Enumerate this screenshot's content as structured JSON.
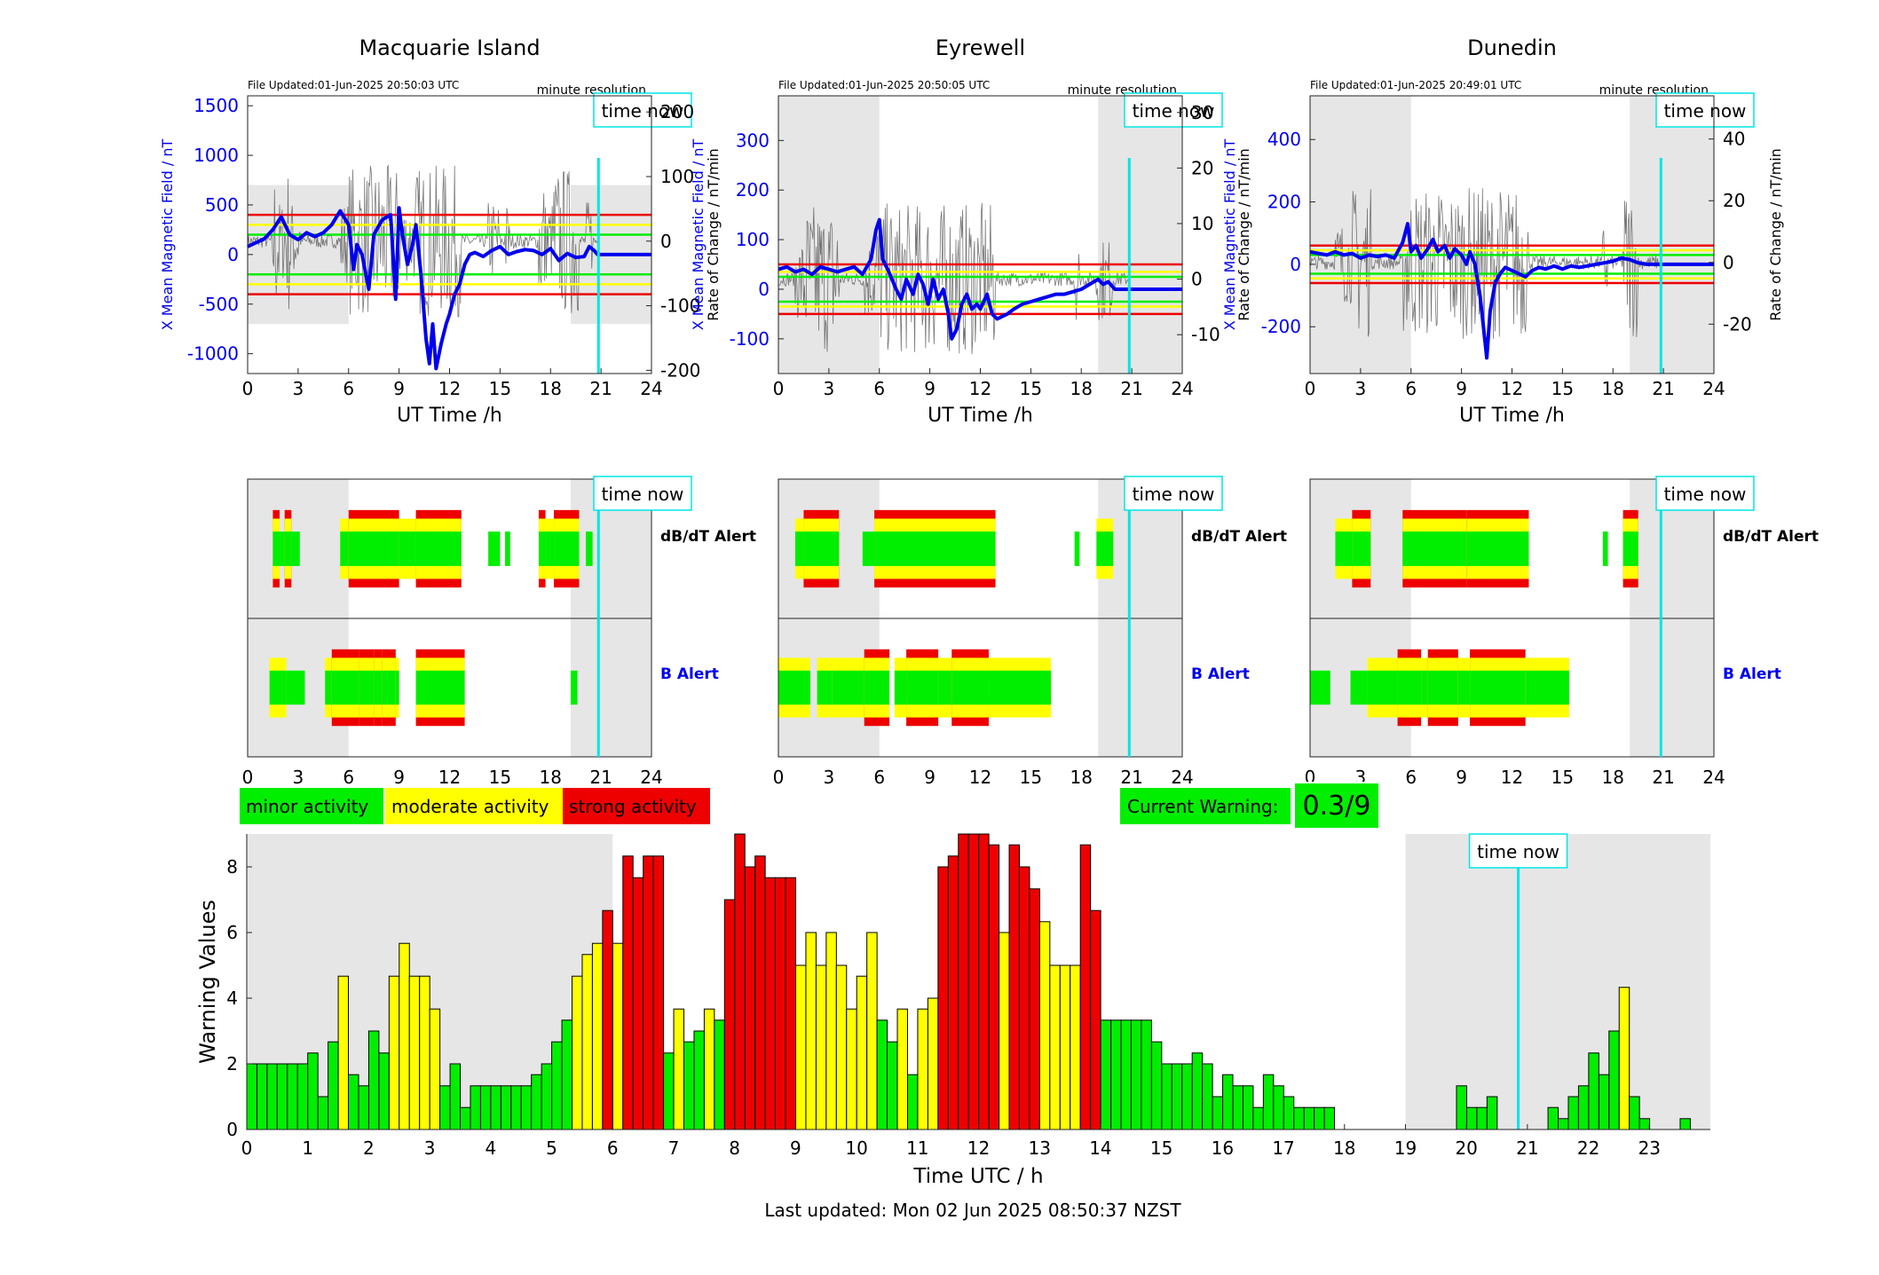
{
  "footer": "Last updated: Mon 02 Jun 2025 08:50:37 NZST",
  "time_now_label": "time now",
  "minute_resolution_label": "minute resolution",
  "ut_time_xlabel": "UT Time /h",
  "ylabel_left": "X Mean Magnetic Field / nT",
  "ylabel_right": "Rate of Change / nT/min",
  "dbdt_alert_label": "dB/dT Alert",
  "b_alert_label": "B Alert",
  "legend": {
    "minor": "minor activity",
    "moderate": "moderate activity",
    "strong": "strong activity"
  },
  "current_warning": {
    "label": "Current Warning:",
    "value": "0.3/9"
  },
  "colors": {
    "minor": "#00ee00",
    "moderate": "#ffff00",
    "strong": "#ee0000",
    "mean_line": "#0000ee",
    "time_now_line": "#00e5e5",
    "night_shading": "#e6e6e6"
  },
  "time_now_hour": 20.85,
  "stations": [
    {
      "name": "Macquarie Island",
      "file_updated": "File Updated:01-Jun-2025 20:50:03 UTC",
      "ylim": [
        -1200,
        1600
      ],
      "yticks": [
        -1000,
        -500,
        0,
        500,
        1000,
        1500
      ],
      "rlim": [
        -205,
        225
      ],
      "rticks": [
        -200,
        -100,
        0,
        100,
        200
      ],
      "thresholds": {
        "green": 200,
        "yellow": 300,
        "red": 400
      },
      "night_hours": [
        [
          0,
          6
        ],
        [
          19.2,
          24
        ]
      ],
      "night_band_y": [
        -700,
        700
      ],
      "mean_field": [
        [
          0,
          80
        ],
        [
          0.5,
          120
        ],
        [
          1,
          160
        ],
        [
          1.5,
          250
        ],
        [
          2,
          380
        ],
        [
          2.5,
          200
        ],
        [
          3,
          150
        ],
        [
          3.5,
          220
        ],
        [
          4,
          180
        ],
        [
          4.5,
          220
        ],
        [
          5,
          300
        ],
        [
          5.5,
          440
        ],
        [
          6,
          300
        ],
        [
          6.3,
          -150
        ],
        [
          6.5,
          100
        ],
        [
          6.8,
          0
        ],
        [
          7.2,
          -350
        ],
        [
          7.5,
          200
        ],
        [
          8,
          350
        ],
        [
          8.5,
          400
        ],
        [
          8.8,
          -450
        ],
        [
          9,
          470
        ],
        [
          9.2,
          200
        ],
        [
          9.5,
          -100
        ],
        [
          9.8,
          100
        ],
        [
          10,
          300
        ],
        [
          10.3,
          -200
        ],
        [
          10.6,
          -850
        ],
        [
          10.8,
          -1100
        ],
        [
          11,
          -700
        ],
        [
          11.2,
          -1150
        ],
        [
          11.5,
          -900
        ],
        [
          11.8,
          -700
        ],
        [
          12,
          -600
        ],
        [
          12.3,
          -400
        ],
        [
          12.6,
          -300
        ],
        [
          12.9,
          -100
        ],
        [
          13.2,
          0
        ],
        [
          13.5,
          20
        ],
        [
          14,
          -20
        ],
        [
          14.5,
          40
        ],
        [
          15,
          80
        ],
        [
          15.5,
          0
        ],
        [
          16,
          30
        ],
        [
          16.5,
          50
        ],
        [
          17,
          40
        ],
        [
          17.5,
          0
        ],
        [
          18,
          60
        ],
        [
          18.5,
          -60
        ],
        [
          19,
          10
        ],
        [
          19.5,
          -30
        ],
        [
          20,
          -20
        ],
        [
          20.3,
          80
        ],
        [
          20.6,
          40
        ],
        [
          20.8,
          0
        ],
        [
          24,
          0
        ]
      ],
      "activity_columns": [
        {
          "c": [
            1.5,
            1.9
          ],
          "k": "lvl3"
        },
        {
          "c": [
            1.9,
            2.2
          ],
          "k": "lvl1"
        },
        {
          "c": [
            2.2,
            2.6
          ],
          "k": "lvl3"
        },
        {
          "c": [
            2.6,
            3.1
          ],
          "k": "lvl1"
        },
        {
          "c": [
            5.5,
            6.0
          ],
          "k": "lvl2"
        },
        {
          "c": [
            6.0,
            9.0
          ],
          "k": "lvl3"
        },
        {
          "c": [
            9.0,
            10.0
          ],
          "k": "lvl2"
        },
        {
          "c": [
            10.0,
            12.7
          ],
          "k": "lvl3"
        },
        {
          "c": [
            14.3,
            15.0
          ],
          "k": "lvl1"
        },
        {
          "c": [
            15.3,
            15.6
          ],
          "k": "lvl1"
        },
        {
          "c": [
            17.3,
            17.7
          ],
          "k": "lvl3"
        },
        {
          "c": [
            17.7,
            18.2
          ],
          "k": "lvl2"
        },
        {
          "c": [
            18.2,
            19.7
          ],
          "k": "lvl3"
        },
        {
          "c": [
            20.1,
            20.5
          ],
          "k": "lvl1"
        }
      ],
      "b_columns": [
        {
          "c": [
            1.3,
            2.3
          ],
          "k": "lvl2"
        },
        {
          "c": [
            2.3,
            3.4
          ],
          "k": "lvl1"
        },
        {
          "c": [
            4.6,
            5.0
          ],
          "k": "lvl2"
        },
        {
          "c": [
            5.0,
            6.6
          ],
          "k": "lvl3"
        },
        {
          "c": [
            6.6,
            7.5
          ],
          "k": "lvl3"
        },
        {
          "c": [
            7.5,
            8.0
          ],
          "k": "lvl3"
        },
        {
          "c": [
            8.0,
            8.8
          ],
          "k": "lvl3"
        },
        {
          "c": [
            8.8,
            9.0
          ],
          "k": "lvl2"
        },
        {
          "c": [
            10.0,
            12.9
          ],
          "k": "lvl3"
        },
        {
          "c": [
            19.2,
            19.6
          ],
          "k": "lvl1"
        }
      ]
    },
    {
      "name": "Eyrewell",
      "file_updated": "File Updated:01-Jun-2025 20:50:05 UTC",
      "ylim": [
        -170,
        390
      ],
      "yticks": [
        -100,
        0,
        100,
        200,
        300
      ],
      "rlim": [
        -17,
        33
      ],
      "rticks": [
        -10,
        0,
        10,
        20,
        30
      ],
      "thresholds": {
        "green": 25,
        "yellow": 35,
        "red": 50
      },
      "night_hours": [
        [
          0,
          6
        ],
        [
          19,
          24
        ]
      ],
      "night_band_y": [
        -170,
        390
      ],
      "mean_field": [
        [
          0,
          40
        ],
        [
          0.5,
          45
        ],
        [
          1,
          35
        ],
        [
          1.5,
          40
        ],
        [
          2,
          30
        ],
        [
          2.5,
          45
        ],
        [
          3,
          40
        ],
        [
          3.5,
          35
        ],
        [
          4,
          40
        ],
        [
          4.5,
          45
        ],
        [
          5,
          30
        ],
        [
          5.5,
          60
        ],
        [
          5.8,
          120
        ],
        [
          6,
          140
        ],
        [
          6.2,
          60
        ],
        [
          6.5,
          40
        ],
        [
          7,
          0
        ],
        [
          7.3,
          -20
        ],
        [
          7.6,
          20
        ],
        [
          8,
          -10
        ],
        [
          8.3,
          30
        ],
        [
          8.6,
          10
        ],
        [
          8.9,
          -30
        ],
        [
          9.2,
          20
        ],
        [
          9.5,
          -20
        ],
        [
          9.8,
          0
        ],
        [
          10.1,
          -50
        ],
        [
          10.3,
          -100
        ],
        [
          10.6,
          -80
        ],
        [
          10.9,
          -30
        ],
        [
          11.2,
          -10
        ],
        [
          11.5,
          -40
        ],
        [
          11.8,
          -30
        ],
        [
          12,
          -40
        ],
        [
          12.4,
          -10
        ],
        [
          12.7,
          -50
        ],
        [
          13,
          -60
        ],
        [
          13.3,
          -55
        ],
        [
          13.6,
          -50
        ],
        [
          14,
          -40
        ],
        [
          14.5,
          -30
        ],
        [
          15,
          -25
        ],
        [
          15.5,
          -20
        ],
        [
          16,
          -15
        ],
        [
          16.5,
          -10
        ],
        [
          17,
          -10
        ],
        [
          17.5,
          -5
        ],
        [
          18,
          0
        ],
        [
          18.5,
          10
        ],
        [
          19,
          20
        ],
        [
          19.3,
          10
        ],
        [
          19.6,
          15
        ],
        [
          20,
          0
        ],
        [
          24,
          0
        ]
      ],
      "activity_columns": [
        {
          "c": [
            1.0,
            1.5
          ],
          "k": "lvl2"
        },
        {
          "c": [
            1.5,
            3.6
          ],
          "k": "lvl3"
        },
        {
          "c": [
            5.0,
            5.7
          ],
          "k": "lvl1"
        },
        {
          "c": [
            5.7,
            12.9
          ],
          "k": "lvl3"
        },
        {
          "c": [
            17.6,
            17.9
          ],
          "k": "lvl1"
        },
        {
          "c": [
            18.9,
            19.9
          ],
          "k": "lvl2"
        }
      ],
      "b_columns": [
        {
          "c": [
            0.0,
            1.9
          ],
          "k": "lvl2"
        },
        {
          "c": [
            2.3,
            3.2
          ],
          "k": "lvl2"
        },
        {
          "c": [
            3.2,
            5.1
          ],
          "k": "lvl2"
        },
        {
          "c": [
            5.1,
            6.6
          ],
          "k": "lvl3"
        },
        {
          "c": [
            6.9,
            7.6
          ],
          "k": "lvl2"
        },
        {
          "c": [
            7.6,
            9.5
          ],
          "k": "lvl3"
        },
        {
          "c": [
            9.5,
            10.3
          ],
          "k": "lvl2"
        },
        {
          "c": [
            10.3,
            12.5
          ],
          "k": "lvl3"
        },
        {
          "c": [
            12.5,
            16.2
          ],
          "k": "lvl2"
        }
      ]
    },
    {
      "name": "Dunedin",
      "file_updated": "File Updated:01-Jun-2025 20:49:01 UTC",
      "ylim": [
        -350,
        540
      ],
      "yticks": [
        -200,
        0,
        200,
        400
      ],
      "rlim": [
        -36,
        54
      ],
      "rticks": [
        -20,
        0,
        20,
        40
      ],
      "thresholds": {
        "green": 30,
        "yellow": 45,
        "red": 60
      },
      "night_hours": [
        [
          0,
          6
        ],
        [
          19,
          24
        ]
      ],
      "night_band_y": [
        -350,
        540
      ],
      "mean_field": [
        [
          0,
          40
        ],
        [
          0.5,
          35
        ],
        [
          1,
          30
        ],
        [
          1.5,
          40
        ],
        [
          2,
          30
        ],
        [
          2.5,
          35
        ],
        [
          3,
          20
        ],
        [
          3.5,
          30
        ],
        [
          4,
          25
        ],
        [
          4.5,
          30
        ],
        [
          5,
          20
        ],
        [
          5.5,
          70
        ],
        [
          5.8,
          130
        ],
        [
          6,
          40
        ],
        [
          6.3,
          60
        ],
        [
          6.6,
          20
        ],
        [
          7,
          50
        ],
        [
          7.3,
          80
        ],
        [
          7.6,
          40
        ],
        [
          8,
          60
        ],
        [
          8.3,
          20
        ],
        [
          8.6,
          50
        ],
        [
          9,
          30
        ],
        [
          9.3,
          0
        ],
        [
          9.5,
          40
        ],
        [
          9.8,
          0
        ],
        [
          10.1,
          -100
        ],
        [
          10.3,
          -200
        ],
        [
          10.5,
          -300
        ],
        [
          10.7,
          -150
        ],
        [
          11,
          -60
        ],
        [
          11.3,
          -30
        ],
        [
          11.6,
          -10
        ],
        [
          12,
          -20
        ],
        [
          12.4,
          -30
        ],
        [
          12.8,
          -40
        ],
        [
          13.2,
          -20
        ],
        [
          13.6,
          -10
        ],
        [
          14,
          -15
        ],
        [
          14.5,
          -5
        ],
        [
          15,
          -15
        ],
        [
          15.5,
          -5
        ],
        [
          16,
          -10
        ],
        [
          16.5,
          -5
        ],
        [
          17,
          0
        ],
        [
          17.5,
          5
        ],
        [
          18,
          10
        ],
        [
          18.5,
          20
        ],
        [
          19,
          15
        ],
        [
          19.5,
          5
        ],
        [
          20,
          0
        ],
        [
          24,
          0
        ]
      ],
      "activity_columns": [
        {
          "c": [
            1.5,
            2.5
          ],
          "k": "lvl2"
        },
        {
          "c": [
            2.5,
            3.6
          ],
          "k": "lvl3"
        },
        {
          "c": [
            5.5,
            9.3
          ],
          "k": "lvl3"
        },
        {
          "c": [
            9.3,
            13.0
          ],
          "k": "lvl3"
        },
        {
          "c": [
            17.4,
            17.7
          ],
          "k": "lvl1"
        },
        {
          "c": [
            18.6,
            19.5
          ],
          "k": "lvl3"
        }
      ],
      "b_columns": [
        {
          "c": [
            0.0,
            1.2
          ],
          "k": "lvl1"
        },
        {
          "c": [
            2.4,
            3.4
          ],
          "k": "lvl1"
        },
        {
          "c": [
            3.4,
            5.2
          ],
          "k": "lvl2"
        },
        {
          "c": [
            5.2,
            6.6
          ],
          "k": "lvl3"
        },
        {
          "c": [
            6.6,
            7.0
          ],
          "k": "lvl2"
        },
        {
          "c": [
            7.0,
            8.8
          ],
          "k": "lvl3"
        },
        {
          "c": [
            8.8,
            9.5
          ],
          "k": "lvl2"
        },
        {
          "c": [
            9.5,
            12.8
          ],
          "k": "lvl3"
        },
        {
          "c": [
            12.8,
            15.4
          ],
          "k": "lvl2"
        }
      ]
    }
  ],
  "chart_data": {
    "type": "bar",
    "title": "",
    "xlabel": "Time UTC / h",
    "ylabel": "Warning Values",
    "xlim": [
      0,
      24
    ],
    "ylim": [
      0,
      9
    ],
    "xticks": [
      0,
      1,
      2,
      3,
      4,
      5,
      6,
      7,
      8,
      9,
      10,
      11,
      12,
      13,
      14,
      15,
      16,
      17,
      18,
      19,
      20,
      21,
      22,
      23
    ],
    "yticks": [
      0,
      2,
      4,
      6,
      8
    ],
    "bin_hours": 0.1667,
    "values": [
      2,
      2,
      2,
      2,
      2,
      2,
      2.33,
      1,
      2.67,
      4.67,
      1.67,
      1.33,
      3,
      2.33,
      4.67,
      5.67,
      4.67,
      4.67,
      3.67,
      1.33,
      2,
      0.67,
      1.33,
      1.33,
      1.33,
      1.33,
      1.33,
      1.33,
      1.67,
      2,
      2.67,
      3.33,
      4.67,
      5.33,
      5.67,
      6.67,
      5.67,
      8.33,
      7.67,
      8.33,
      8.33,
      2.33,
      3.67,
      2.67,
      3,
      3.67,
      3.33,
      7,
      9,
      8,
      8.33,
      7.67,
      7.67,
      7.67,
      5,
      6,
      5,
      6,
      5,
      3.67,
      4.67,
      6,
      3.33,
      2.67,
      3.67,
      1.67,
      3.67,
      4,
      8,
      8.33,
      9,
      9,
      9,
      8.67,
      6,
      8.67,
      8,
      7.33,
      6.33,
      5,
      5,
      5,
      8.67,
      6.67,
      3.33,
      3.33,
      3.33,
      3.33,
      3.33,
      2.67,
      2,
      2,
      2,
      2.33,
      2,
      1,
      1.67,
      1.33,
      1.33,
      0.67,
      1.67,
      1.33,
      1,
      0.67,
      0.67,
      0.67,
      0.67,
      0,
      0,
      0,
      0,
      0,
      0,
      0,
      0,
      0,
      0,
      0,
      0,
      1.33,
      0.67,
      0.67,
      1,
      0,
      0,
      0,
      0,
      0,
      0.67,
      0.33,
      1,
      1.33,
      2.33,
      1.67,
      3,
      4.33,
      1,
      0.33,
      0,
      0,
      0,
      0.33,
      0,
      0,
      0,
      0,
      0
    ],
    "color_levels": {
      "moderate_from": 3.5,
      "strong_from": 6.5
    }
  }
}
